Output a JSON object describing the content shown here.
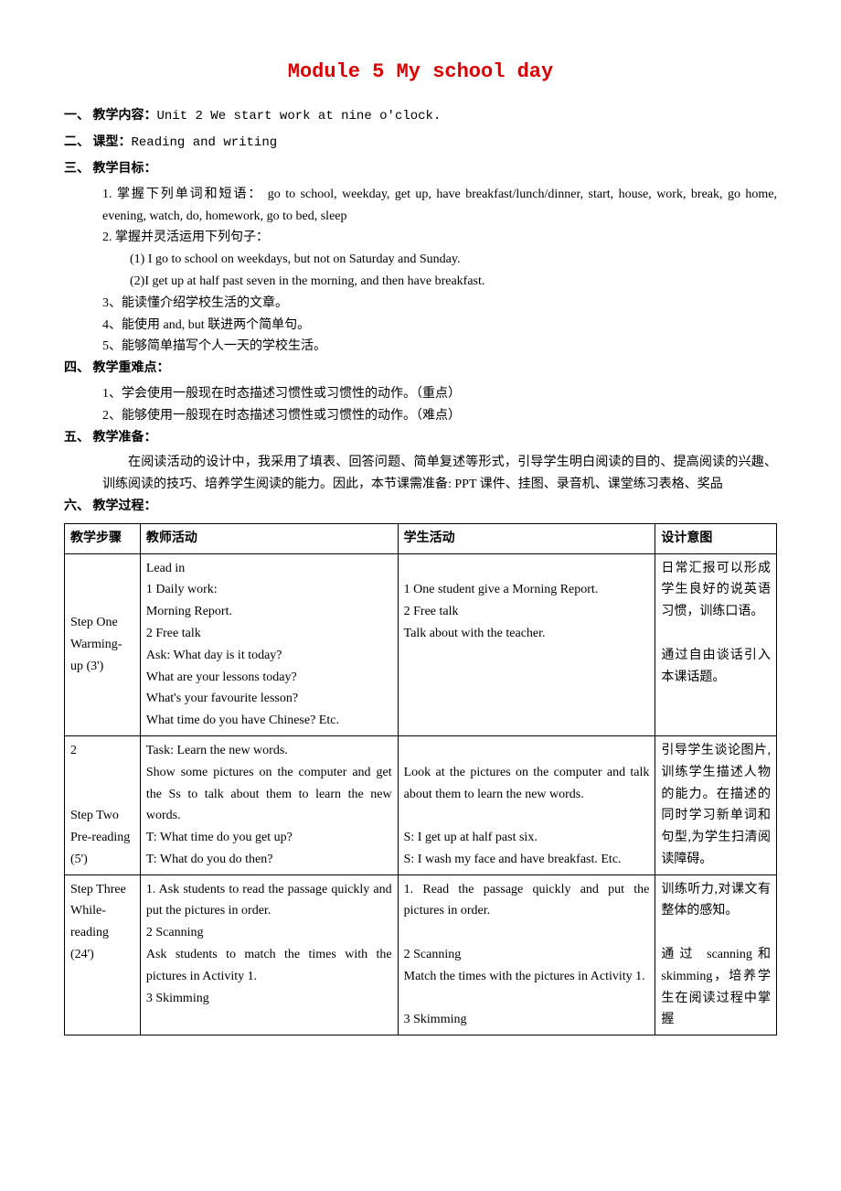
{
  "title": "Module 5  My school day",
  "sections": {
    "s1": {
      "label": "一、 教学内容：",
      "content": "Unit 2 We start work at nine o'clock."
    },
    "s2": {
      "label": "二、 课型：",
      "content": "Reading and writing"
    },
    "s3": {
      "label": "三、 教学目标："
    },
    "obj1": "1.  掌握下列单词和短语：  go to school, weekday, get up, have breakfast/lunch/dinner, start, house, work, break, go home, evening, watch, do, homework, go to bed, sleep",
    "obj2": "2.  掌握并灵活运用下列句子：",
    "obj2a": "(1) I go to school on weekdays, but not on Saturday and Sunday.",
    "obj2b": "(2)I get up at half past seven in the morning, and then have breakfast.",
    "obj3": "3、能读懂介绍学校生活的文章。",
    "obj4": "4、能使用 and, but 联进两个简单句。",
    "obj5": "5、能够简单描写个人一天的学校生活。",
    "s4": {
      "label": "四、 教学重难点："
    },
    "kd1": "1、学会使用一般现在时态描述习惯性或习惯性的动作。（重点）",
    "kd2": "2、能够使用一般现在时态描述习惯性或习惯性的动作。（难点）",
    "s5": {
      "label": "五、 教学准备："
    },
    "prep": "在阅读活动的设计中，我采用了填表、回答问题、简单复述等形式，引导学生明白阅读的目的、提高阅读的兴趣、训练阅读的技巧、培养学生阅读的能力。因此，本节课需准备: PPT 课件、挂图、录音机、课堂练习表格、奖品",
    "s6": {
      "label": "六、 教学过程："
    }
  },
  "table": {
    "headers": {
      "c1": "教学步骤",
      "c2": "教师活动",
      "c3": "学生活动",
      "c4": "设计意图"
    },
    "row1": {
      "step": "Step One\nWarming-up (3')",
      "teacher": " Lead in\n1 Daily work:\nMorning  Report.\n2 Free talk\nAsk: What day is it today?\nWhat are your lessons today?\nWhat's your favourite lesson?\nWhat time do you have Chinese? Etc.",
      "student": "\n1 One student give a Morning Report.\n2 Free talk\nTalk about with the teacher.",
      "purpose": "日常汇报可以形成学生良好的说英语习惯，训练口语。\n\n通过自由谈话引入本课话题。"
    },
    "row2": {
      "stepnum": "2",
      "step": "Step Two\nPre-reading (5')",
      "teacher": "Task: Learn the new words.\n Show some pictures on the computer and get the Ss to talk about them to learn the new words.\nT: What time do you get up?\nT: What do you do then?",
      "student": "\nLook at the pictures on the computer and talk about them to learn the new words.\n\nS: I get up at half past six.\nS: I wash my face and have breakfast. Etc.\n ",
      "purpose": "引导学生谈论图片,训练学生描述人物的能力。在描述的同时学习新单词和句型,为学生扫清阅读障碍。"
    },
    "row3": {
      "step": "Step Three\nWhile-reading (24')",
      "teacher": "1. Ask students to read the passage quickly and put the pictures in order.\n2 Scanning\nAsk students to match the times with the pictures in Activity 1.\n3 Skimming",
      "student": "1. Read the passage quickly and put the pictures in order.\n\n2 Scanning\nMatch the times with the pictures in Activity 1.\n\n3 Skimming",
      "purpose": "训练听力,对课文有整体的感知。\n\n通过 scanning和 skimming，培养学生在阅读过程中掌握"
    }
  },
  "colors": {
    "title": "#dd0000",
    "text": "#000000",
    "border": "#000000",
    "background": "#ffffff"
  }
}
